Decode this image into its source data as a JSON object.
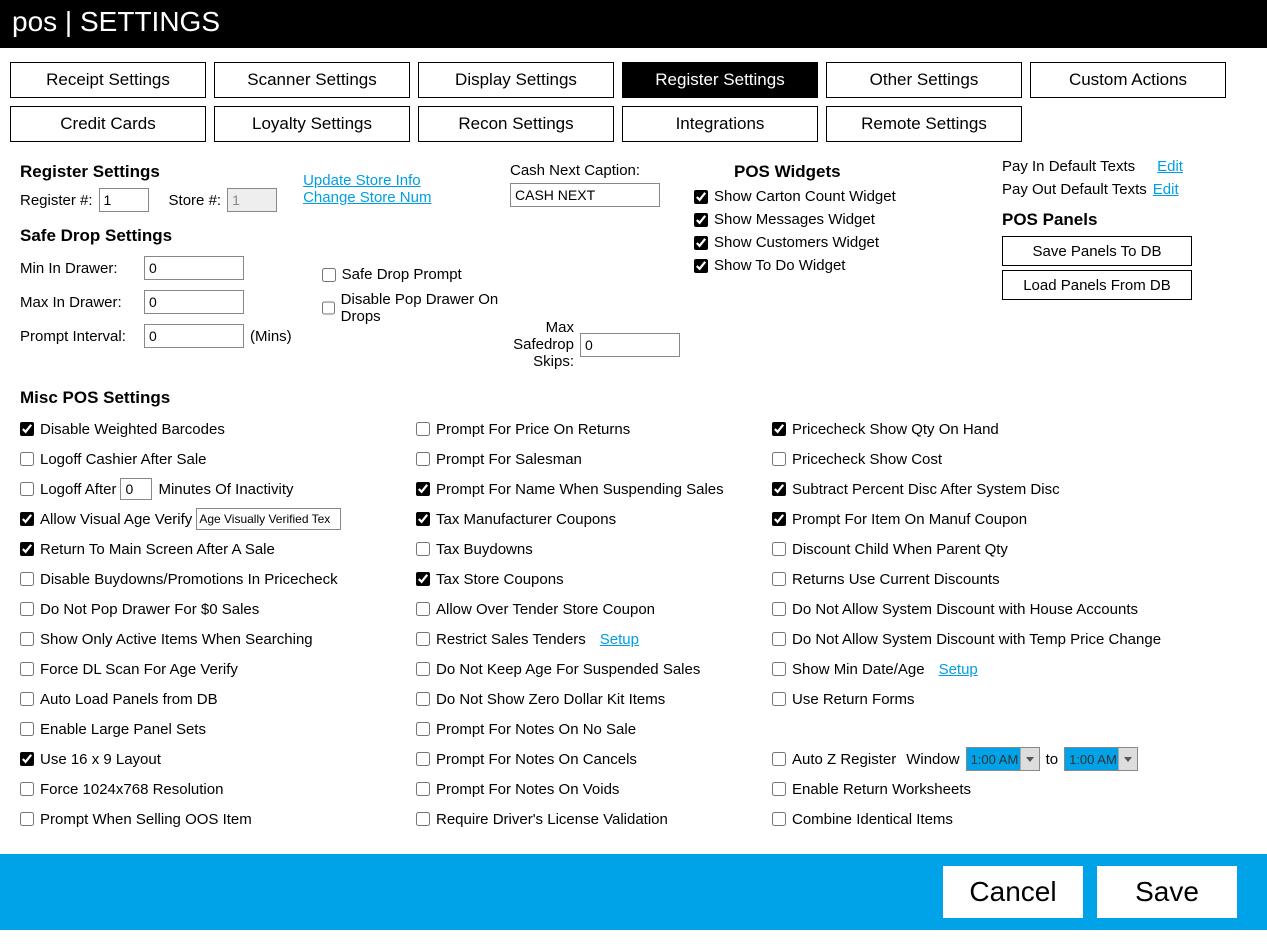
{
  "header": {
    "left": "pos",
    "sep": " | ",
    "right": "SETTINGS"
  },
  "tabs": [
    "Receipt Settings",
    "Scanner Settings",
    "Display Settings",
    "Register Settings",
    "Other Settings",
    "Custom Actions",
    "Credit Cards",
    "Loyalty Settings",
    "Recon Settings",
    "Integrations",
    "Remote Settings"
  ],
  "active_tab_index": 3,
  "register": {
    "title": "Register Settings",
    "reg_label": "Register #:",
    "reg_value": "1",
    "store_label": "Store #:",
    "store_value": "1",
    "update_link": "Update Store Info",
    "change_link": "Change Store Num"
  },
  "cash": {
    "label": "Cash Next Caption:",
    "value": "CASH NEXT"
  },
  "safe": {
    "title": "Safe Drop Settings",
    "min_label": "Min In Drawer:",
    "min_value": "0",
    "max_label": "Max In Drawer:",
    "max_value": "0",
    "prompt_label": "Prompt Interval:",
    "prompt_value": "0",
    "mins": "(Mins)",
    "safedrop_prompt": "Safe Drop Prompt",
    "disable_pop": "Disable Pop Drawer On Drops",
    "max_skips_label": "Max Safedrop Skips:",
    "max_skips_value": "0"
  },
  "widgets": {
    "title": "POS Widgets",
    "items": [
      {
        "label": "Show Carton Count Widget",
        "checked": true
      },
      {
        "label": "Show Messages Widget",
        "checked": true
      },
      {
        "label": "Show Customers Widget",
        "checked": true
      },
      {
        "label": "Show To Do Widget",
        "checked": true
      }
    ]
  },
  "payio": {
    "payin": "Pay In Default Texts",
    "edit": "Edit",
    "payout": "Pay Out Default Texts",
    "panels_title": "POS Panels",
    "save_btn": "Save Panels To DB",
    "load_btn": "Load Panels From DB"
  },
  "misc": {
    "title": "Misc POS Settings",
    "col1": [
      {
        "label": "Disable Weighted Barcodes",
        "checked": true
      },
      {
        "label": "Logoff Cashier After Sale",
        "checked": false
      },
      {
        "label": "Logoff After",
        "checked": false,
        "input": "0",
        "suffix": "Minutes Of Inactivity"
      },
      {
        "label": "Allow Visual Age Verify",
        "checked": true,
        "input": "Age Visually Verified Tex",
        "inputClass": "ageverify"
      },
      {
        "label": "Return To Main Screen After A Sale",
        "checked": true
      },
      {
        "label": "Disable Buydowns/Promotions In Pricecheck",
        "checked": false
      },
      {
        "label": "Do Not Pop Drawer For $0 Sales",
        "checked": false
      },
      {
        "label": "Show Only Active Items When Searching",
        "checked": false
      },
      {
        "label": "Force DL Scan For Age Verify",
        "checked": false
      },
      {
        "label": "Auto Load Panels from DB",
        "checked": false
      },
      {
        "label": "Enable Large Panel Sets",
        "checked": false
      },
      {
        "label": "Use 16 x 9 Layout",
        "checked": true
      },
      {
        "label": "Force 1024x768 Resolution",
        "checked": false
      },
      {
        "label": "Prompt When Selling OOS Item",
        "checked": false
      }
    ],
    "col2": [
      {
        "label": "Prompt For Price On Returns",
        "checked": false
      },
      {
        "label": "Prompt For Salesman",
        "checked": false
      },
      {
        "label": "Prompt For Name When Suspending Sales",
        "checked": true
      },
      {
        "label": "Tax Manufacturer Coupons",
        "checked": true
      },
      {
        "label": "Tax Buydowns",
        "checked": false
      },
      {
        "label": "Tax Store Coupons",
        "checked": true
      },
      {
        "label": "Allow Over Tender Store Coupon",
        "checked": false
      },
      {
        "label": "Restrict Sales Tenders",
        "checked": false,
        "link": "Setup"
      },
      {
        "label": "Do Not Keep Age For Suspended Sales",
        "checked": false
      },
      {
        "label": "Do Not Show Zero Dollar Kit Items",
        "checked": false
      },
      {
        "label": "Prompt For Notes On No Sale",
        "checked": false
      },
      {
        "label": "Prompt For Notes On Cancels",
        "checked": false
      },
      {
        "label": "Prompt For Notes On Voids",
        "checked": false
      },
      {
        "label": "Require Driver's License Validation",
        "checked": false
      }
    ],
    "col3": [
      {
        "label": "Pricecheck Show Qty On Hand",
        "checked": true
      },
      {
        "label": "Pricecheck Show Cost",
        "checked": false
      },
      {
        "label": "Subtract Percent Disc After System Disc",
        "checked": true
      },
      {
        "label": "Prompt For Item On Manuf Coupon",
        "checked": true
      },
      {
        "label": "Discount Child When Parent Qty",
        "checked": false
      },
      {
        "label": "Returns Use Current Discounts",
        "checked": false
      },
      {
        "label": "Do Not Allow System Discount with House Accounts",
        "checked": false
      },
      {
        "label": "Do Not Allow System Discount with Temp Price Change",
        "checked": false
      },
      {
        "label": "Show Min Date/Age",
        "checked": false,
        "link": "Setup"
      },
      {
        "label": "Use Return Forms",
        "checked": false
      },
      {
        "blank": true
      },
      {
        "label": "Auto Z Register",
        "checked": false,
        "autoz": true,
        "window": "Window",
        "t1": "1:00 AM",
        "to": "to",
        "t2": "1:00 AM"
      },
      {
        "label": "Enable Return Worksheets",
        "checked": false
      },
      {
        "label": "Combine Identical Items",
        "checked": false
      }
    ]
  },
  "footer": {
    "cancel": "Cancel",
    "save": "Save"
  }
}
